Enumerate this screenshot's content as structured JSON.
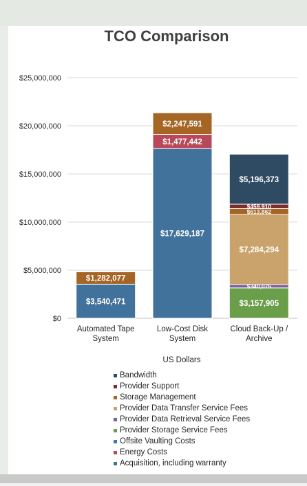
{
  "chart_data": {
    "type": "bar",
    "stacked": true,
    "title": "TCO Comparison",
    "xlabel": "US Dollars",
    "ylabel": "",
    "ylim": [
      0,
      25000000
    ],
    "yticks": [
      {
        "value": 0,
        "label": "$0"
      },
      {
        "value": 5000000,
        "label": "$5,000,000"
      },
      {
        "value": 10000000,
        "label": "$10,000,000"
      },
      {
        "value": 15000000,
        "label": "$15,000,000"
      },
      {
        "value": 20000000,
        "label": "$20,000,000"
      },
      {
        "value": 25000000,
        "label": "$25,000,000"
      }
    ],
    "categories": [
      "Automated Tape System",
      "Low-Cost Disk System",
      "Cloud Back-Up / Archive"
    ],
    "category_lines": [
      [
        "Automated Tape",
        "System"
      ],
      [
        "Low-Cost Disk",
        "System"
      ],
      [
        "Cloud Back-Up /",
        "Archive"
      ]
    ],
    "grid": true,
    "legend_position": "bottom",
    "series": [
      {
        "name": "Acquisition, including warranty",
        "color": "#41729c",
        "values": [
          3540471,
          17629187,
          null
        ],
        "labels": [
          "$3,540,471",
          "$17,629,187",
          ""
        ]
      },
      {
        "name": "Energy Costs",
        "color": "#b9485a",
        "values": [
          null,
          1477442,
          null
        ],
        "labels": [
          "",
          "$1,477,442",
          ""
        ]
      },
      {
        "name": "Offsite Vaulting Costs",
        "color": "#3f75b8",
        "values": [
          null,
          null,
          null
        ],
        "labels": [
          "",
          "",
          ""
        ]
      },
      {
        "name": "Provider Storage Service Fees",
        "color": "#6b9e4b",
        "values": [
          null,
          null,
          3157905
        ],
        "labels": [
          "",
          "",
          "$3,157,905"
        ]
      },
      {
        "name": "Provider Data Retrieval Service Fees",
        "color": "#7a619e",
        "values": [
          null,
          null,
          340075
        ],
        "labels": [
          "",
          "",
          "$340,075"
        ]
      },
      {
        "name": "Provider Data Transfer Service Fees",
        "color": "#c9a36b",
        "values": [
          null,
          null,
          7284294
        ],
        "labels": [
          "",
          "",
          "$7,284,294"
        ]
      },
      {
        "name": "Storage Management",
        "color": "#a56524",
        "values": [
          1282077,
          2247591,
          613862
        ],
        "labels": [
          "$1,282,077",
          "$2,247,591",
          "$613,862"
        ]
      },
      {
        "name": "Provider Support",
        "color": "#7a2d2e",
        "values": [
          null,
          null,
          459910
        ],
        "labels": [
          "",
          "",
          "$459,910"
        ]
      },
      {
        "name": "Bandwidth",
        "color": "#2f4b63",
        "values": [
          null,
          null,
          5196373
        ],
        "labels": [
          "",
          "",
          "$5,196,373"
        ]
      }
    ]
  }
}
